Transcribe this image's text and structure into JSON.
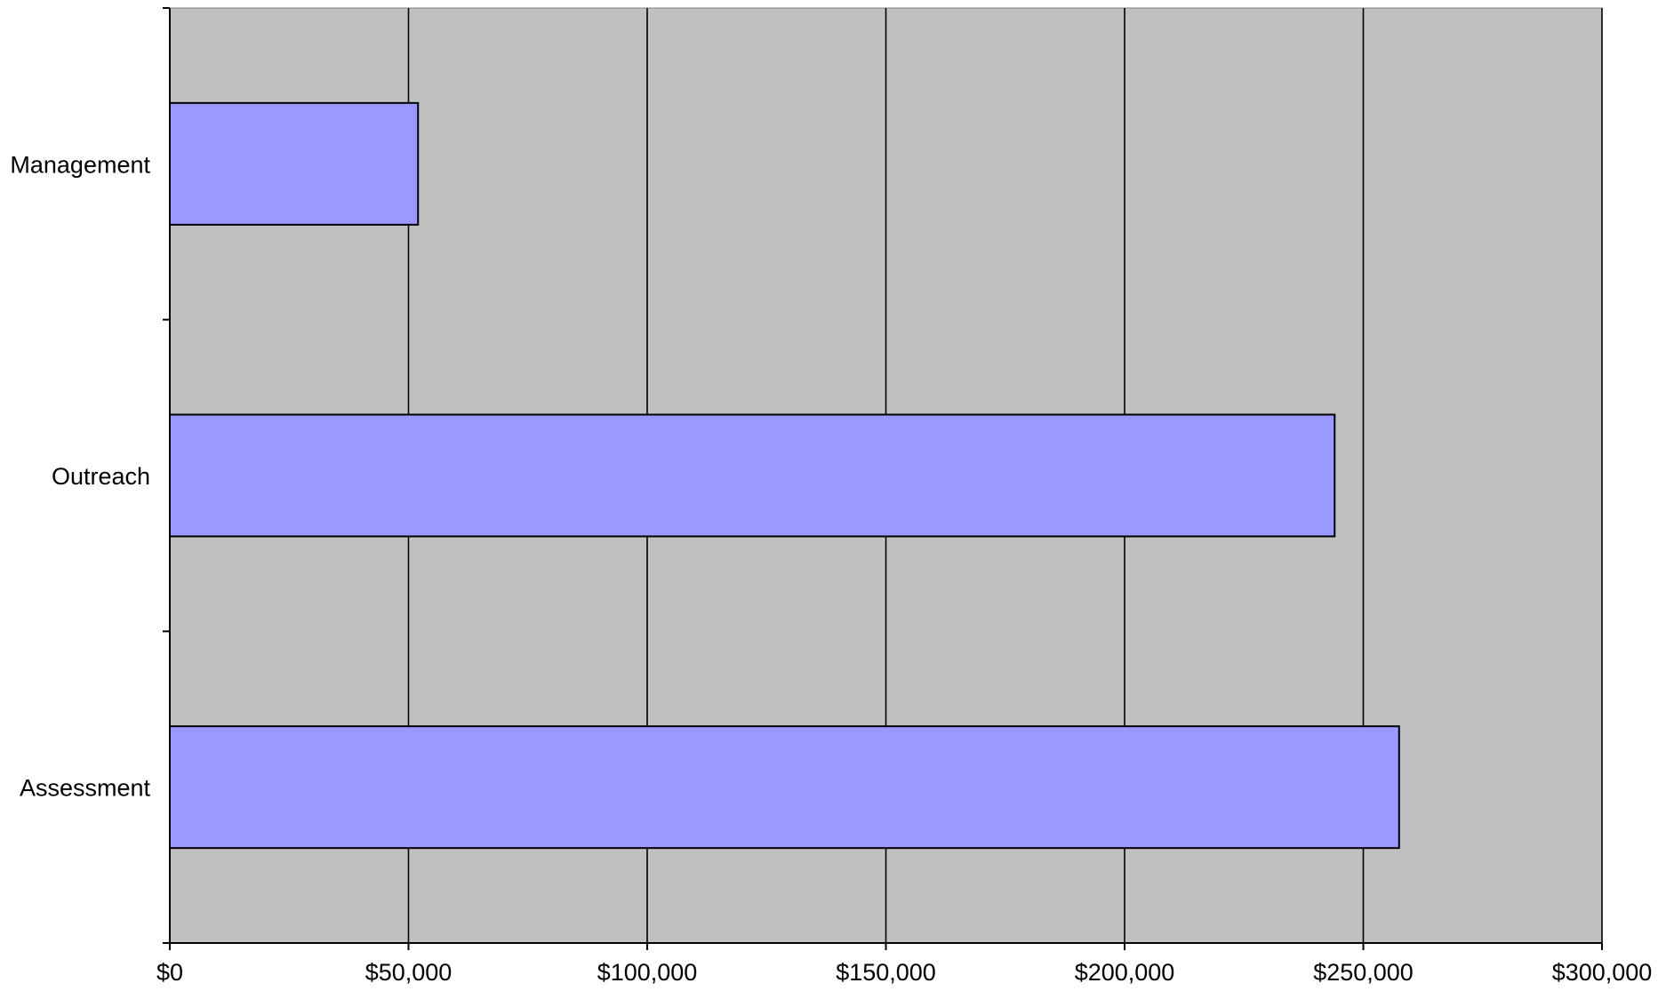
{
  "chart_data": {
    "type": "bar",
    "orientation": "horizontal",
    "categories": [
      "Management",
      "Outreach",
      "Assessment"
    ],
    "series": [
      {
        "values": [
          52000,
          244000,
          257500
        ]
      }
    ],
    "xlim": [
      0,
      300000
    ],
    "x_ticks": [
      0,
      50000,
      100000,
      150000,
      200000,
      250000,
      300000
    ],
    "x_tick_labels": [
      "$0",
      "$50,000",
      "$100,000",
      "$150,000",
      "$200,000",
      "$250,000",
      "$300,000"
    ],
    "title": "",
    "xlabel": "",
    "ylabel": "",
    "grid": "vertical",
    "legend": "none",
    "colors": {
      "bar_fill": "#9999FF",
      "bar_stroke": "#000000",
      "plot_background": "#C0C0C0",
      "gridline": "#000000",
      "axis": "#000000",
      "page_background": "#FFFFFF"
    }
  }
}
